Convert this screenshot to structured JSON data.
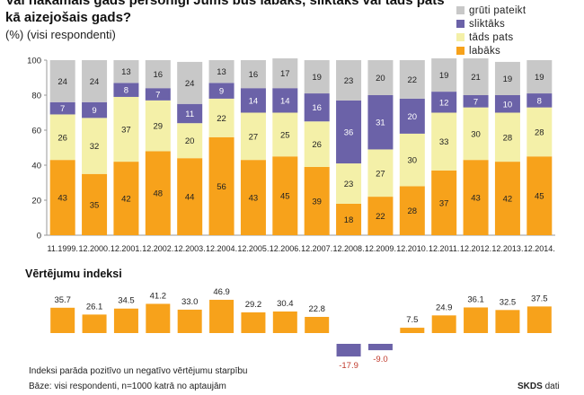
{
  "header": {
    "title": "Vai nākamais gads personīgi Jums būs labāks, sliktāks vai tāds pats kā aizejošais gads?",
    "subtitle": "(%) (visi respondenti)"
  },
  "legend": [
    {
      "label": "grūti pateikt",
      "color": "#c8c8c8"
    },
    {
      "label": "sliktāks",
      "color": "#6b62a8"
    },
    {
      "label": "tāds pats",
      "color": "#f4f0a8"
    },
    {
      "label": "labāks",
      "color": "#f7a21b"
    }
  ],
  "index_title": "Vērtējumu indeksi",
  "notes": {
    "line1": "Indeksi parāda pozitīvo un negatīvo vērtējumu starpību",
    "line2": "Bāze: visi respondenti, n=1000 katrā no aptaujām"
  },
  "source": {
    "brand": "SKDS",
    "suffix": " dati"
  },
  "chart_data": [
    {
      "type": "bar",
      "stacked": true,
      "categories": [
        "11.1999.",
        "12.2000.",
        "12.2001.",
        "12.2002.",
        "12.2003.",
        "12.2004.",
        "12.2005.",
        "12.2006.",
        "12.2007.",
        "12.2008.",
        "12.2009.",
        "12.2010.",
        "12.2011.",
        "12.2012.",
        "12.2013.",
        "12.2014."
      ],
      "series": [
        {
          "name": "labāks",
          "color": "#f7a21b",
          "values": [
            43,
            35,
            42,
            48,
            44,
            56,
            43,
            45,
            39,
            18,
            22,
            28,
            37,
            43,
            42,
            45
          ]
        },
        {
          "name": "tāds pats",
          "color": "#f4f0a8",
          "values": [
            26,
            32,
            37,
            29,
            20,
            22,
            27,
            25,
            26,
            23,
            27,
            30,
            33,
            30,
            28,
            28
          ]
        },
        {
          "name": "sliktāks",
          "color": "#6b62a8",
          "values": [
            7,
            9,
            8,
            7,
            11,
            9,
            14,
            14,
            16,
            36,
            31,
            20,
            12,
            7,
            10,
            8
          ]
        },
        {
          "name": "grūti pateikt",
          "color": "#c8c8c8",
          "values": [
            24,
            24,
            13,
            16,
            24,
            13,
            16,
            17,
            19,
            23,
            20,
            22,
            19,
            21,
            19,
            19
          ]
        }
      ],
      "ylim": [
        0,
        100
      ],
      "yticks": [
        0,
        20,
        40,
        60,
        80,
        100
      ],
      "grid": false
    },
    {
      "type": "bar",
      "categories": [
        "11.1999.",
        "12.2000.",
        "12.2001.",
        "12.2002.",
        "12.2003.",
        "12.2004.",
        "12.2005.",
        "12.2006.",
        "12.2007.",
        "12.2008.",
        "12.2009.",
        "12.2010.",
        "12.2011.",
        "12.2012.",
        "12.2013.",
        "12.2014."
      ],
      "values": [
        35.7,
        26.1,
        34.5,
        41.2,
        33.0,
        46.9,
        29.2,
        30.4,
        22.8,
        -17.9,
        -9.0,
        7.5,
        24.9,
        36.1,
        32.5,
        37.5
      ],
      "value_labels": [
        "35.7",
        "26.1",
        "34.5",
        "41.2",
        "33.0",
        "46.9",
        "29.2",
        "30.4",
        "22.8",
        "-17.9",
        "-9.0",
        "7.5",
        "24.9",
        "36.1",
        "32.5",
        "37.5"
      ],
      "positive_color": "#f7a21b",
      "negative_color": "#6b62a8"
    }
  ]
}
